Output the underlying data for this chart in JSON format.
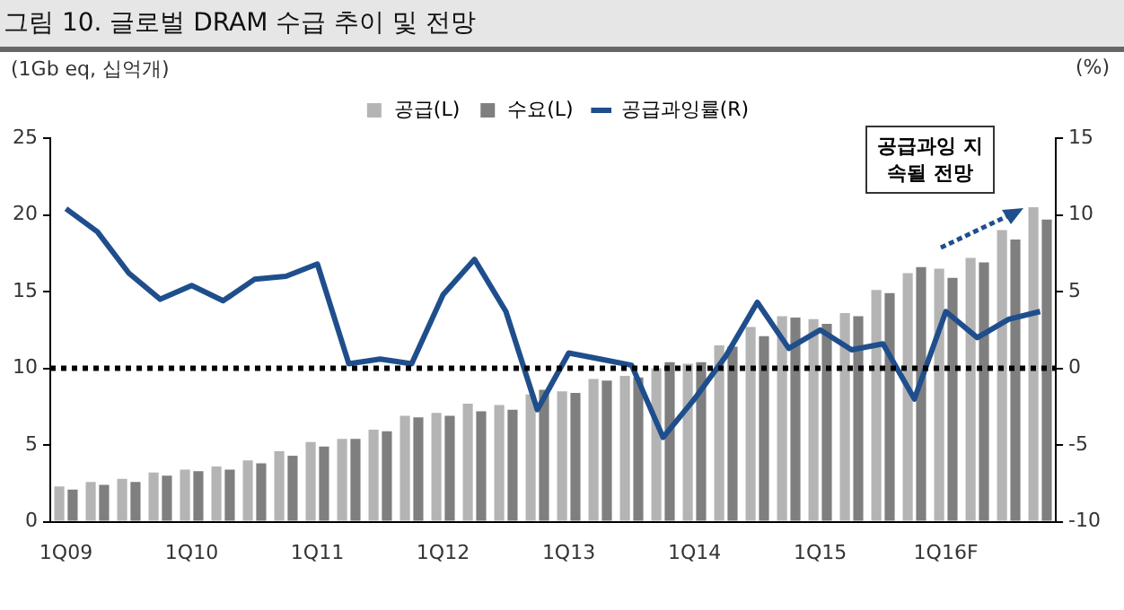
{
  "chart_data": {
    "type": "bar",
    "title": "그림 10. 글로벌 DRAM 수급 추이 및 전망",
    "ylabel": "(1Gb eq, 십억개)",
    "y2label": "(%)",
    "categories": [
      "1Q09",
      null,
      null,
      null,
      "1Q10",
      null,
      null,
      null,
      "1Q11",
      null,
      null,
      null,
      "1Q12",
      null,
      null,
      null,
      "1Q13",
      null,
      null,
      null,
      "1Q14",
      null,
      null,
      null,
      "1Q15",
      null,
      null,
      null,
      "1Q16F",
      null,
      null,
      null
    ],
    "series": [
      {
        "name": "공급(L)",
        "color": "#b4b4b4",
        "values": [
          2.3,
          2.6,
          2.8,
          3.2,
          3.4,
          3.6,
          4.0,
          4.6,
          5.2,
          5.4,
          6.0,
          6.9,
          7.1,
          7.7,
          7.6,
          8.3,
          8.5,
          9.3,
          9.5,
          10.0,
          10.3,
          11.5,
          12.7,
          13.4,
          13.2,
          13.6,
          15.1,
          16.2,
          16.5,
          17.2,
          19.0,
          20.5
        ]
      },
      {
        "name": "수요(L)",
        "color": "#7f7f7f",
        "values": [
          2.1,
          2.4,
          2.6,
          3.0,
          3.3,
          3.4,
          3.8,
          4.3,
          4.9,
          5.4,
          5.9,
          6.8,
          6.9,
          7.2,
          7.3,
          8.6,
          8.4,
          9.2,
          9.4,
          10.4,
          10.4,
          11.4,
          12.1,
          13.3,
          12.9,
          13.4,
          14.9,
          16.6,
          15.9,
          16.9,
          18.4,
          19.7
        ]
      },
      {
        "name": "공급과잉률(R)",
        "type": "line",
        "axis": "y2",
        "color": "#1f4e8c",
        "values": [
          10.4,
          8.9,
          6.2,
          4.5,
          5.4,
          4.4,
          5.8,
          6.0,
          6.8,
          0.3,
          0.6,
          0.3,
          4.8,
          7.1,
          3.7,
          -2.7,
          1.0,
          0.6,
          0.2,
          -4.5,
          -2.0,
          0.8,
          4.3,
          1.3,
          2.5,
          1.2,
          1.6,
          -2.0,
          3.7,
          2.0,
          3.2,
          3.7
        ]
      }
    ],
    "ylim": [
      0,
      25
    ],
    "yticks": [
      0,
      5,
      10,
      15,
      20,
      25
    ],
    "y2lim": [
      -10,
      15
    ],
    "y2ticks": [
      -10,
      -5,
      0,
      5,
      10,
      15
    ],
    "ref_lines": [
      {
        "axis": "y2",
        "value": 0,
        "color": "#000000",
        "line_style": "dotted"
      }
    ],
    "annotations": [
      "공급과잉 지속될 전망"
    ],
    "legend": "top",
    "grid": false,
    "marker": "none",
    "line_style": "solid"
  }
}
